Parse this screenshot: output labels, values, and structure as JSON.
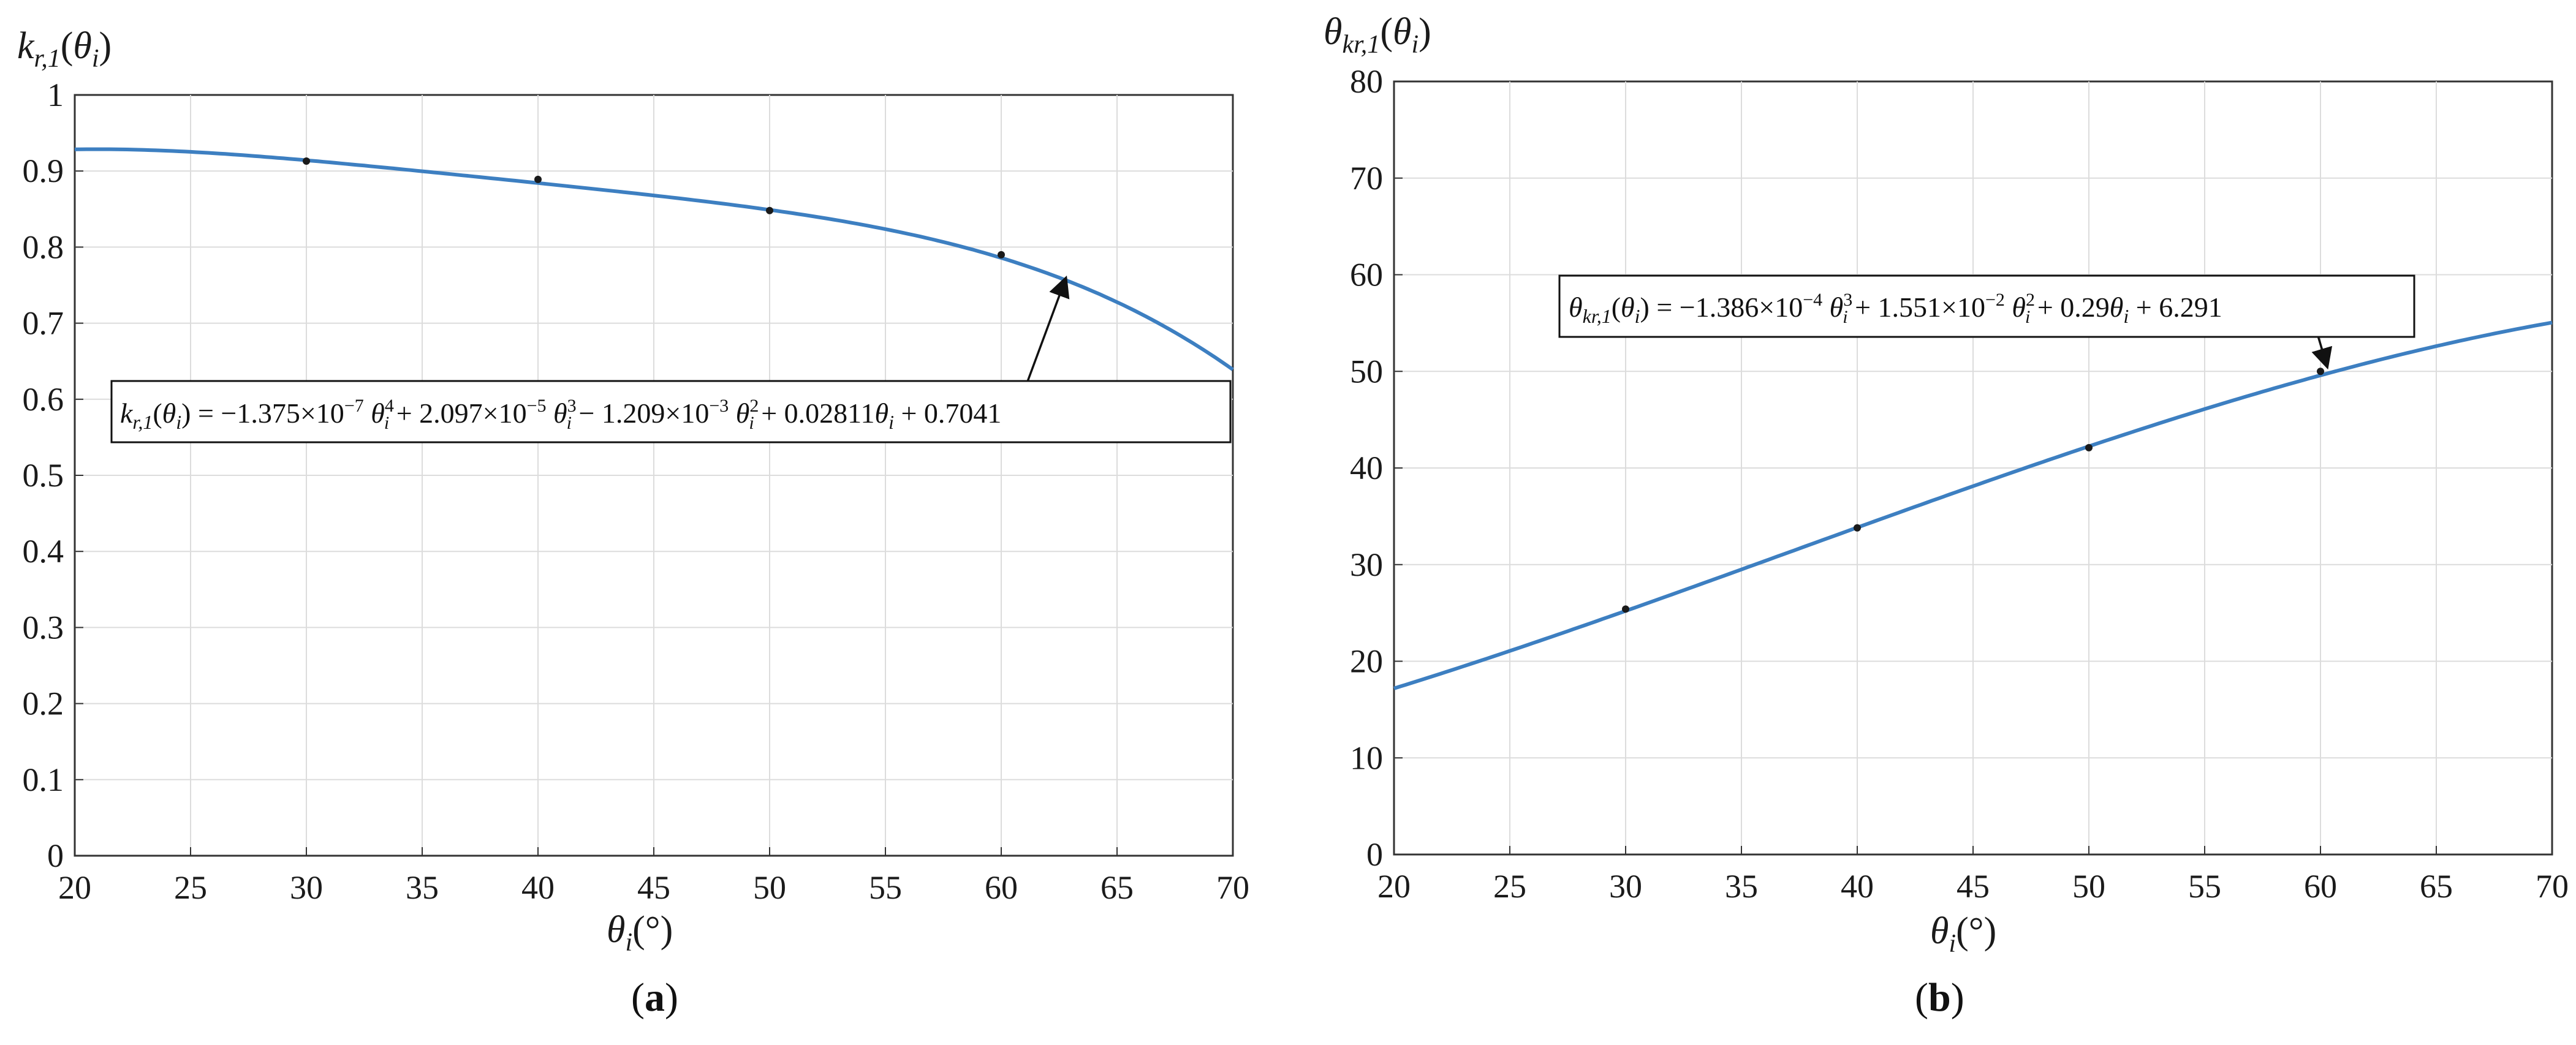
{
  "chart_data": [
    {
      "type": "line",
      "panel": "(a)",
      "panel_letter": "a",
      "ylabel": "k_{r,1}(θ_i)",
      "xlabel": "θ_i(°)",
      "xlim": [
        20,
        70
      ],
      "ylim": [
        0,
        1
      ],
      "xticks": [
        20,
        25,
        30,
        35,
        40,
        45,
        50,
        55,
        60,
        65,
        70
      ],
      "yticks": [
        0,
        0.1,
        0.2,
        0.3,
        0.4,
        0.5,
        0.6,
        0.7,
        0.8,
        0.9,
        1
      ],
      "ytick_labels": [
        "0",
        "0.1",
        "0.2",
        "0.3",
        "0.4",
        "0.5",
        "0.6",
        "0.7",
        "0.8",
        "0.9",
        "1"
      ],
      "grid": true,
      "curve_color": "#3d7fc1",
      "marker_color": "#1a1a1a",
      "series": [
        {
          "kind": "fit",
          "poly_coeffs_high_to_low": [
            -1.375e-07,
            2.097e-05,
            -0.001209,
            0.02811,
            0.7041
          ]
        },
        {
          "kind": "points",
          "x": [
            30,
            40,
            50,
            60
          ],
          "y": [
            0.913,
            0.889,
            0.848,
            0.79
          ]
        }
      ],
      "annotation": {
        "text": "k_{r,1}(θ_i) = −1.375×10^{−7} θ_i^4 + 2.097×10^{−5} θ_i^3 − 1.209×10^{−3} θ_i^2 + 0.02811θ_i + 0.7041",
        "arrow_target": [
          62.8,
          0.76
        ]
      }
    },
    {
      "type": "line",
      "panel": "(b)",
      "panel_letter": "b",
      "ylabel": "θ_{kr,1}(θ_i)",
      "xlabel": "θ_i(°)",
      "xlim": [
        20,
        70
      ],
      "ylim": [
        0,
        80
      ],
      "xticks": [
        20,
        25,
        30,
        35,
        40,
        45,
        50,
        55,
        60,
        65,
        70
      ],
      "yticks": [
        0,
        10,
        20,
        30,
        40,
        50,
        60,
        70,
        80
      ],
      "ytick_labels": [
        "0",
        "10",
        "20",
        "30",
        "40",
        "50",
        "60",
        "70",
        "80"
      ],
      "grid": true,
      "curve_color": "#3d7fc1",
      "marker_color": "#1a1a1a",
      "series": [
        {
          "kind": "fit",
          "poly_coeffs_high_to_low": [
            -0.0001386,
            0.01551,
            0.29,
            6.291
          ]
        },
        {
          "kind": "points",
          "x": [
            30,
            40,
            50,
            60
          ],
          "y": [
            25.4,
            33.8,
            42.1,
            50.0
          ]
        }
      ],
      "annotation": {
        "text": "θ_{kr,1}(θ_i) = −1.386×10^{−4} θ_i^3 + 1.551×10^{−2} θ_i^2 + 0.29θ_i + 6.291",
        "arrow_target": [
          60.3,
          50.4
        ]
      }
    }
  ]
}
